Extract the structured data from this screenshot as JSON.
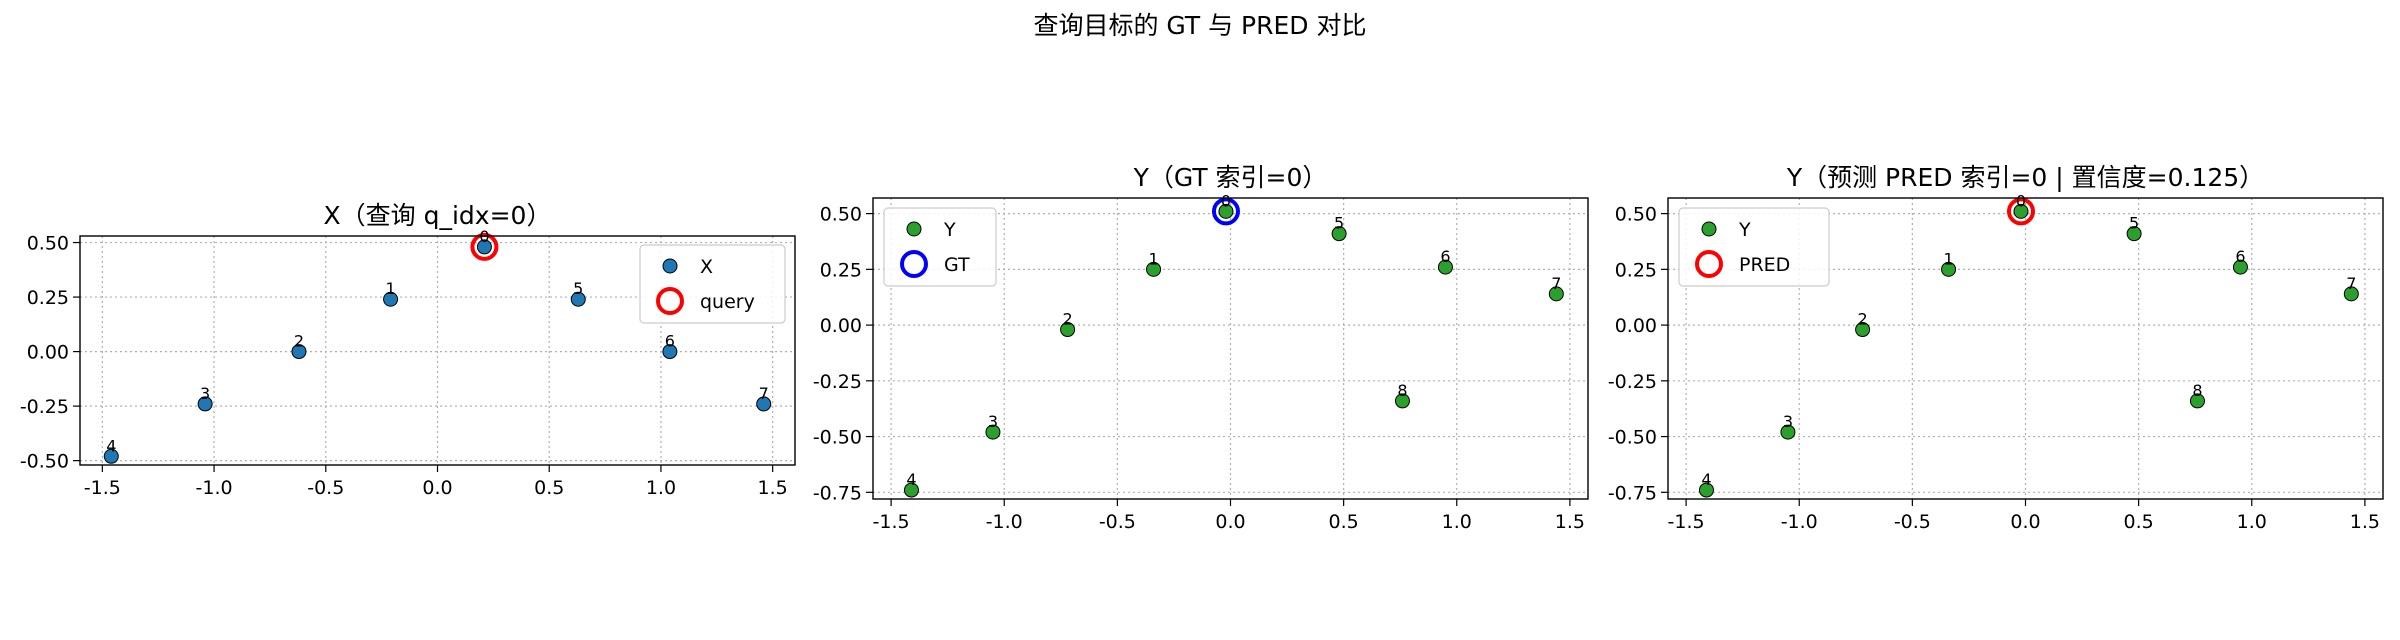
{
  "figure": {
    "suptitle": "查询目标的 GT 与 PRED 对比"
  },
  "chart_data": [
    {
      "type": "scatter",
      "title": "X（查询 q_idx=0）",
      "xlabel": "",
      "ylabel": "",
      "xlim": [
        -1.6,
        1.6
      ],
      "ylim": [
        -0.52,
        0.53
      ],
      "xticks": [
        -1.5,
        -1.0,
        -0.5,
        0.0,
        0.5,
        1.0,
        1.5
      ],
      "xtick_labels": [
        "-1.5",
        "-1.0",
        "-0.5",
        "0.0",
        "0.5",
        "1.0",
        "1.5"
      ],
      "yticks": [
        -0.5,
        -0.25,
        0.0,
        0.25,
        0.5
      ],
      "ytick_labels": [
        "-0.50",
        "-0.25",
        "0.00",
        "0.25",
        "0.50"
      ],
      "grid": true,
      "legend_position": "upper right",
      "series": [
        {
          "name": "X",
          "color": "#1f77b4",
          "points": [
            {
              "label": "0",
              "x": 0.21,
              "y": 0.48
            },
            {
              "label": "1",
              "x": -0.21,
              "y": 0.24
            },
            {
              "label": "2",
              "x": -0.62,
              "y": 0.0
            },
            {
              "label": "3",
              "x": -1.04,
              "y": -0.24
            },
            {
              "label": "4",
              "x": -1.46,
              "y": -0.48
            },
            {
              "label": "5",
              "x": 0.63,
              "y": 0.24
            },
            {
              "label": "6",
              "x": 1.04,
              "y": 0.0
            },
            {
              "label": "7",
              "x": 1.46,
              "y": -0.24
            }
          ]
        }
      ],
      "highlight": {
        "name": "query",
        "color": "#ff0000",
        "x": 0.21,
        "y": 0.48
      }
    },
    {
      "type": "scatter",
      "title": "Y（GT 索引=0）",
      "xlabel": "",
      "ylabel": "",
      "xlim": [
        -1.58,
        1.58
      ],
      "ylim": [
        -0.78,
        0.57
      ],
      "xticks": [
        -1.5,
        -1.0,
        -0.5,
        0.0,
        0.5,
        1.0,
        1.5
      ],
      "xtick_labels": [
        "-1.5",
        "-1.0",
        "-0.5",
        "0.0",
        "0.5",
        "1.0",
        "1.5"
      ],
      "yticks": [
        -0.75,
        -0.5,
        -0.25,
        0.0,
        0.25,
        0.5
      ],
      "ytick_labels": [
        "-0.75",
        "-0.50",
        "-0.25",
        "0.00",
        "0.25",
        "0.50"
      ],
      "grid": true,
      "legend_position": "upper left",
      "series": [
        {
          "name": "Y",
          "color": "#2ca02c",
          "points": [
            {
              "label": "0",
              "x": -0.02,
              "y": 0.51
            },
            {
              "label": "1",
              "x": -0.34,
              "y": 0.25
            },
            {
              "label": "2",
              "x": -0.72,
              "y": -0.02
            },
            {
              "label": "3",
              "x": -1.05,
              "y": -0.48
            },
            {
              "label": "4",
              "x": -1.41,
              "y": -0.74
            },
            {
              "label": "5",
              "x": 0.48,
              "y": 0.41
            },
            {
              "label": "6",
              "x": 0.95,
              "y": 0.26
            },
            {
              "label": "7",
              "x": 1.44,
              "y": 0.14
            },
            {
              "label": "8",
              "x": 0.76,
              "y": -0.34
            }
          ]
        }
      ],
      "highlight": {
        "name": "GT",
        "color": "#0000ff",
        "x": -0.02,
        "y": 0.51
      }
    },
    {
      "type": "scatter",
      "title": "Y（预测 PRED 索引=0 | 置信度=0.125）",
      "xlabel": "",
      "ylabel": "",
      "xlim": [
        -1.58,
        1.58
      ],
      "ylim": [
        -0.78,
        0.57
      ],
      "xticks": [
        -1.5,
        -1.0,
        -0.5,
        0.0,
        0.5,
        1.0,
        1.5
      ],
      "xtick_labels": [
        "-1.5",
        "-1.0",
        "-0.5",
        "0.0",
        "0.5",
        "1.0",
        "1.5"
      ],
      "yticks": [
        -0.75,
        -0.5,
        -0.25,
        0.0,
        0.25,
        0.5
      ],
      "ytick_labels": [
        "-0.75",
        "-0.50",
        "-0.25",
        "0.00",
        "0.25",
        "0.50"
      ],
      "grid": true,
      "legend_position": "upper left",
      "series": [
        {
          "name": "Y",
          "color": "#2ca02c",
          "points": [
            {
              "label": "0",
              "x": -0.02,
              "y": 0.51
            },
            {
              "label": "1",
              "x": -0.34,
              "y": 0.25
            },
            {
              "label": "2",
              "x": -0.72,
              "y": -0.02
            },
            {
              "label": "3",
              "x": -1.05,
              "y": -0.48
            },
            {
              "label": "4",
              "x": -1.41,
              "y": -0.74
            },
            {
              "label": "5",
              "x": 0.48,
              "y": 0.41
            },
            {
              "label": "6",
              "x": 0.95,
              "y": 0.26
            },
            {
              "label": "7",
              "x": 1.44,
              "y": 0.14
            },
            {
              "label": "8",
              "x": 0.76,
              "y": -0.34
            }
          ]
        }
      ],
      "highlight": {
        "name": "PRED",
        "color": "#ff0000",
        "x": -0.02,
        "y": 0.51
      }
    }
  ]
}
